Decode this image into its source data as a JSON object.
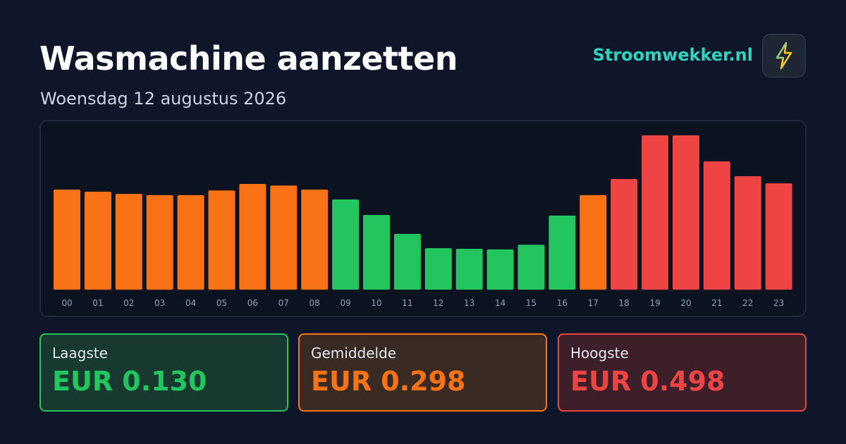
{
  "header": {
    "title": "Wasmachine aanzetten",
    "subtitle": "Woensdag 12 augustus 2026",
    "brand": "Stroomwekker.nl"
  },
  "chart_data": {
    "type": "bar",
    "categories": [
      "00",
      "01",
      "02",
      "03",
      "04",
      "05",
      "06",
      "07",
      "08",
      "09",
      "10",
      "11",
      "12",
      "13",
      "14",
      "15",
      "16",
      "17",
      "18",
      "19",
      "20",
      "21",
      "22",
      "23"
    ],
    "values": [
      0.323,
      0.316,
      0.309,
      0.305,
      0.305,
      0.32,
      0.341,
      0.336,
      0.323,
      0.291,
      0.241,
      0.18,
      0.134,
      0.132,
      0.13,
      0.145,
      0.239,
      0.305,
      0.357,
      0.498,
      0.498,
      0.414,
      0.366,
      0.343
    ],
    "colors": [
      "#f97316",
      "#f97316",
      "#f97316",
      "#f97316",
      "#f97316",
      "#f97316",
      "#f97316",
      "#f97316",
      "#f97316",
      "#22c55e",
      "#22c55e",
      "#22c55e",
      "#22c55e",
      "#22c55e",
      "#22c55e",
      "#22c55e",
      "#22c55e",
      "#f97316",
      "#ef4444",
      "#ef4444",
      "#ef4444",
      "#ef4444",
      "#ef4444",
      "#ef4444"
    ]
  },
  "stats": [
    {
      "label": "Laagste",
      "value": "EUR 0.130"
    },
    {
      "label": "Gemiddelde",
      "value": "EUR 0.298"
    },
    {
      "label": "Hoogste",
      "value": "EUR 0.498"
    }
  ]
}
